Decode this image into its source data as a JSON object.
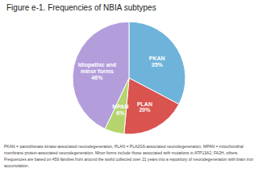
{
  "chart_data": {
    "type": "pie",
    "title": "Figure e-1. Frequencies of NBIA subtypes",
    "categories": [
      "PKAN",
      "PLAN",
      "MPAN",
      "Idiopathic and\nminor forms"
    ],
    "values": [
      35,
      20,
      6,
      46
    ],
    "value_labels": [
      "35%",
      "20%",
      "6%",
      "46%"
    ],
    "data_labels": true,
    "colors": [
      "#6eb3d9",
      "#d9534f",
      "#b5d46e",
      "#b39ddb"
    ],
    "annotations": [
      "PKAN = pantothenate kinase-associated neurodegeneration, PLAN = PLA2G6-associated neurodegeneration, MPAN = mitochondrial",
      "membrane protein-associated neurodegeneration.  Minor forms include those associated with mutations in ATP13A2, FA2H, others.",
      "Frequencies are based on 459 families from around the world collected over 21 years into a repository of neurodegeneration with brain iron",
      "accumulation."
    ]
  }
}
